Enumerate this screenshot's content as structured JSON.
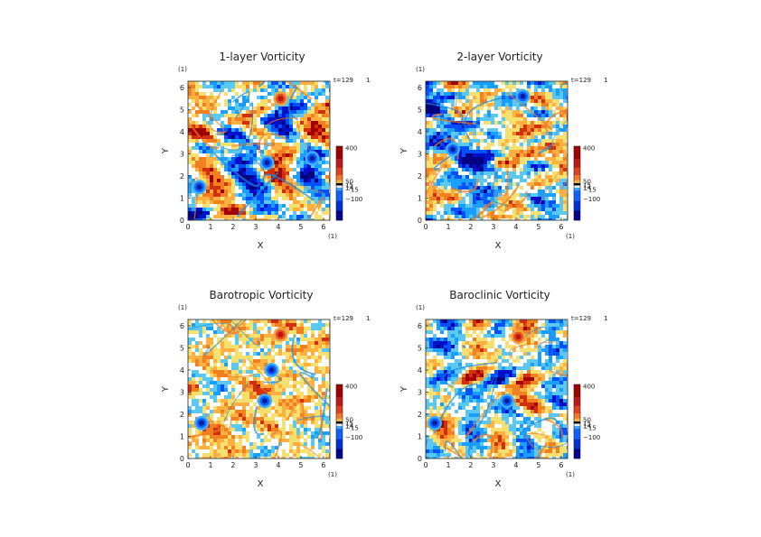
{
  "chart_data": [
    {
      "type": "heatmap",
      "title": "1-layer Vorticity",
      "xlabel": "X",
      "ylabel": "Y",
      "x_unit": "(1)",
      "y_unit": "(1)",
      "time_label": "t=129",
      "time_extra": "1",
      "xlim": [
        0,
        6.283
      ],
      "ylim": [
        0,
        6.283
      ],
      "x_ticks": [
        "0",
        "1",
        "2",
        "3",
        "4",
        "5",
        "6"
      ],
      "y_ticks": [
        "0",
        "1",
        "2",
        "3",
        "4",
        "5",
        "6"
      ],
      "colorbar_levels": [
        "400",
        "50",
        "15",
        "0",
        "-15",
        "-100"
      ],
      "colorbar_labels": [
        "400",
        "50",
        "15",
        "0",
        "-15",
        "-100"
      ],
      "colorbar_labels_shown": [
        "400",
        "50",
        "15",
        "-15",
        "-100"
      ],
      "colorbar_label_extra": "14",
      "colormap": [
        "#000080",
        "#0010c8",
        "#0050ff",
        "#1a9eff",
        "#5ac8f0",
        "#ffffff",
        "#f5e070",
        "#ffb040",
        "#f08020",
        "#d03010",
        "#a00000"
      ],
      "strong_vortices": [
        {
          "x": 0.5,
          "y": 1.5,
          "sign": "negative"
        },
        {
          "x": 4.1,
          "y": 5.5,
          "sign": "positive"
        },
        {
          "x": 3.5,
          "y": 2.6,
          "sign": "negative"
        },
        {
          "x": 5.5,
          "y": 2.8,
          "sign": "negative"
        }
      ]
    },
    {
      "type": "heatmap",
      "title": "2-layer Vorticity",
      "xlabel": "X",
      "ylabel": "Y",
      "x_unit": "(1)",
      "y_unit": "(1)",
      "time_label": "t=129",
      "time_extra": "1",
      "xlim": [
        0,
        6.283
      ],
      "ylim": [
        0,
        6.283
      ],
      "x_ticks": [
        "0",
        "1",
        "2",
        "3",
        "4",
        "5",
        "6"
      ],
      "y_ticks": [
        "0",
        "1",
        "2",
        "3",
        "4",
        "5",
        "6"
      ],
      "colorbar_levels": [
        "400",
        "50",
        "15",
        "0",
        "-15",
        "-100"
      ],
      "colorbar_labels_shown": [
        "400",
        "50",
        "15",
        "-15",
        "-100"
      ],
      "colorbar_label_extra": "14",
      "strong_vortices": [
        {
          "x": 1.2,
          "y": 3.2,
          "sign": "negative"
        },
        {
          "x": 4.3,
          "y": 5.6,
          "sign": "negative"
        }
      ]
    },
    {
      "type": "heatmap",
      "title": "Barotropic Vorticity",
      "xlabel": "X",
      "ylabel": "Y",
      "x_unit": "(1)",
      "y_unit": "(1)",
      "time_label": "t=129",
      "time_extra": "1",
      "xlim": [
        0,
        6.283
      ],
      "ylim": [
        0,
        6.283
      ],
      "x_ticks": [
        "0",
        "1",
        "2",
        "3",
        "4",
        "5",
        "6"
      ],
      "y_ticks": [
        "0",
        "1",
        "2",
        "3",
        "4",
        "5",
        "6"
      ],
      "colorbar_levels": [
        "400",
        "50",
        "15",
        "0",
        "-15",
        "-100"
      ],
      "colorbar_labels_shown": [
        "400",
        "50",
        "15",
        "-15",
        "-100"
      ],
      "colorbar_label_extra": "14",
      "strong_vortices": [
        {
          "x": 0.6,
          "y": 1.6,
          "sign": "negative"
        },
        {
          "x": 4.1,
          "y": 5.6,
          "sign": "positive"
        },
        {
          "x": 3.4,
          "y": 2.6,
          "sign": "negative"
        },
        {
          "x": 3.7,
          "y": 4.0,
          "sign": "negative"
        }
      ]
    },
    {
      "type": "heatmap",
      "title": "Baroclinic Vorticity",
      "xlabel": "X",
      "ylabel": "Y",
      "x_unit": "(1)",
      "y_unit": "(1)",
      "time_label": "t=129",
      "time_extra": "1",
      "xlim": [
        0,
        6.283
      ],
      "ylim": [
        0,
        6.283
      ],
      "x_ticks": [
        "0",
        "1",
        "2",
        "3",
        "4",
        "5",
        "6"
      ],
      "y_ticks": [
        "0",
        "1",
        "2",
        "3",
        "4",
        "5",
        "6"
      ],
      "colorbar_levels": [
        "400",
        "50",
        "15",
        "0",
        "-15",
        "-100"
      ],
      "colorbar_labels_shown": [
        "400",
        "50",
        "15",
        "-15",
        "-100"
      ],
      "colorbar_label_extra": "14",
      "strong_vortices": [
        {
          "x": 0.4,
          "y": 1.6,
          "sign": "negative"
        },
        {
          "x": 4.1,
          "y": 5.5,
          "sign": "positive"
        },
        {
          "x": 3.6,
          "y": 2.6,
          "sign": "negative"
        }
      ]
    }
  ]
}
